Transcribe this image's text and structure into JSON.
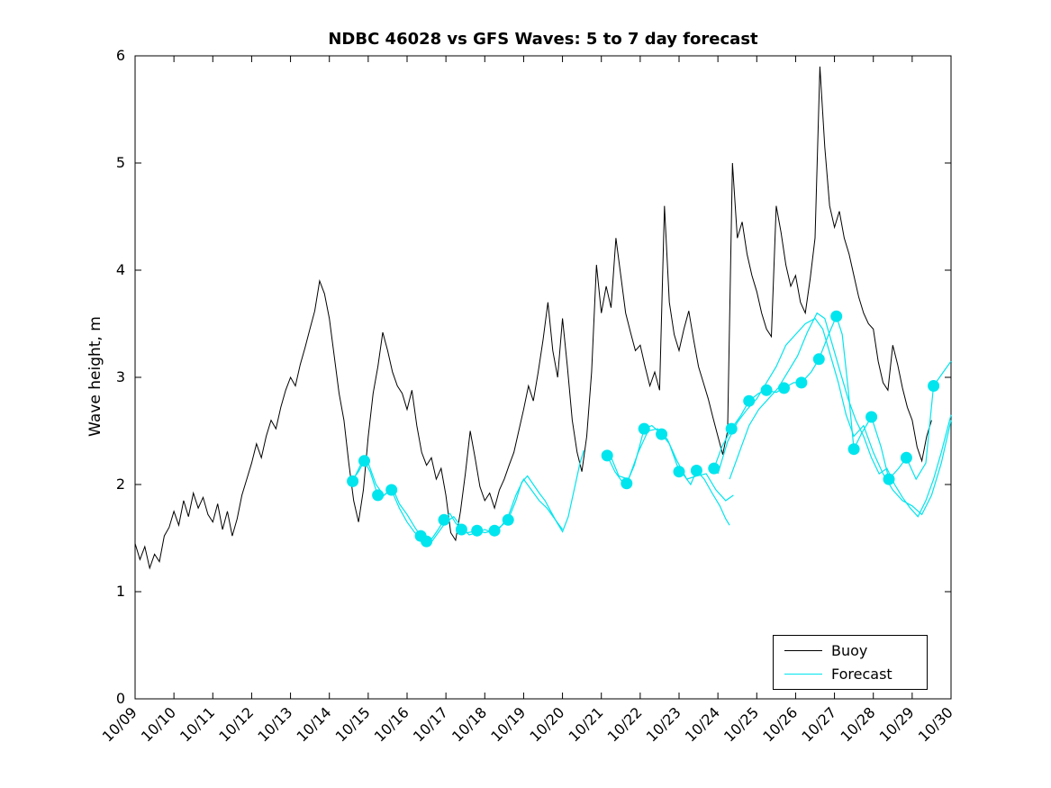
{
  "chart_data": {
    "type": "line",
    "title": "NDBC 46028 vs GFS Waves: 5 to 7 day forecast",
    "xlabel": "",
    "ylabel": "Wave height, m",
    "xlim": [
      0,
      21
    ],
    "ylim": [
      0,
      6
    ],
    "grid": false,
    "legend_position": "lower right",
    "x_unit": "days since 10/09",
    "x_tick_labels": [
      "10/09",
      "10/10",
      "10/11",
      "10/12",
      "10/13",
      "10/14",
      "10/15",
      "10/16",
      "10/17",
      "10/18",
      "10/19",
      "10/20",
      "10/21",
      "10/22",
      "10/23",
      "10/24",
      "10/25",
      "10/26",
      "10/27",
      "10/28",
      "10/29",
      "10/30"
    ],
    "y_tick_labels": [
      "0",
      "1",
      "2",
      "3",
      "4",
      "5",
      "6"
    ],
    "legend": [
      {
        "label": "Buoy",
        "color": "#000000"
      },
      {
        "label": "Forecast",
        "color": "#00e5ee"
      }
    ],
    "buoy_series": {
      "name": "Buoy",
      "color": "#000000",
      "t0": 0,
      "dt": 0.125,
      "values": [
        1.45,
        1.3,
        1.42,
        1.22,
        1.35,
        1.28,
        1.52,
        1.6,
        1.75,
        1.62,
        1.85,
        1.7,
        1.92,
        1.78,
        1.88,
        1.72,
        1.65,
        1.82,
        1.58,
        1.75,
        1.52,
        1.68,
        1.9,
        2.05,
        2.2,
        2.38,
        2.25,
        2.45,
        2.6,
        2.52,
        2.72,
        2.88,
        3.0,
        2.92,
        3.12,
        3.28,
        3.45,
        3.62,
        3.9,
        3.78,
        3.55,
        3.2,
        2.85,
        2.6,
        2.2,
        1.85,
        1.65,
        1.95,
        2.45,
        2.85,
        3.1,
        3.42,
        3.25,
        3.05,
        2.92,
        2.85,
        2.7,
        2.88,
        2.55,
        2.3,
        2.18,
        2.25,
        2.05,
        2.15,
        1.9,
        1.55,
        1.48,
        1.75,
        2.1,
        2.5,
        2.25,
        1.98,
        1.85,
        1.92,
        1.78,
        1.95,
        2.05,
        2.18,
        2.3,
        2.5,
        2.7,
        2.92,
        2.78,
        3.05,
        3.35,
        3.7,
        3.25,
        3.0,
        3.55,
        3.1,
        2.6,
        2.3,
        2.12,
        2.45,
        3.05,
        4.05,
        3.6,
        3.85,
        3.65,
        4.3,
        3.95,
        3.6,
        3.42,
        3.25,
        3.3,
        3.1,
        2.92,
        3.05,
        2.88,
        4.6,
        3.7,
        3.4,
        3.25,
        3.45,
        3.62,
        3.35,
        3.1,
        2.95,
        2.8,
        2.62,
        2.45,
        2.28,
        2.5,
        5.0,
        4.3,
        4.45,
        4.15,
        3.95,
        3.8,
        3.6,
        3.45,
        3.38,
        4.6,
        4.35,
        4.05,
        3.85,
        3.95,
        3.7,
        3.6,
        3.92,
        4.3,
        5.9,
        5.15,
        4.6,
        4.4,
        4.55,
        4.3,
        4.15,
        3.95,
        3.75,
        3.6,
        3.5,
        3.45,
        3.15,
        2.95,
        2.88,
        3.3,
        3.12,
        2.9,
        2.72,
        2.6,
        2.35,
        2.22,
        2.45,
        2.6
      ]
    },
    "forecast_series": {
      "name": "Forecast",
      "color": "#00e5ee",
      "segments": [
        [
          [
            5.55,
            2.02
          ],
          [
            5.75,
            2.12
          ],
          [
            5.9,
            2.22
          ],
          [
            6.05,
            2.12
          ],
          [
            6.2,
            1.95
          ],
          [
            6.35,
            1.88
          ],
          [
            6.5,
            1.93
          ],
          [
            6.65,
            1.95
          ],
          [
            6.8,
            1.82
          ],
          [
            7.0,
            1.72
          ],
          [
            7.2,
            1.6
          ],
          [
            7.35,
            1.52
          ],
          [
            7.5,
            1.47
          ],
          [
            7.65,
            1.5
          ],
          [
            7.8,
            1.58
          ],
          [
            7.95,
            1.67
          ],
          [
            8.1,
            1.73
          ],
          [
            8.25,
            1.64
          ],
          [
            8.4,
            1.58
          ],
          [
            8.55,
            1.55
          ],
          [
            8.7,
            1.56
          ],
          [
            8.8,
            1.57
          ],
          [
            9.0,
            1.55
          ],
          [
            9.25,
            1.57
          ],
          [
            9.45,
            1.62
          ],
          [
            9.6,
            1.67
          ],
          [
            9.8,
            1.85
          ],
          [
            9.95,
            2.02
          ],
          [
            10.1,
            2.08
          ],
          [
            10.25,
            2.0
          ],
          [
            10.4,
            1.92
          ],
          [
            10.55,
            1.85
          ],
          [
            10.7,
            1.75
          ],
          [
            10.85,
            1.65
          ],
          [
            11.0,
            1.56
          ],
          [
            11.15,
            1.7
          ],
          [
            11.3,
            1.95
          ],
          [
            11.45,
            2.2
          ],
          [
            11.55,
            2.32
          ]
        ],
        [
          [
            5.6,
            2.03
          ],
          [
            5.8,
            2.18
          ],
          [
            6.0,
            2.2
          ],
          [
            6.2,
            2.0
          ],
          [
            6.4,
            1.9
          ],
          [
            6.6,
            1.95
          ],
          [
            6.8,
            1.78
          ],
          [
            7.0,
            1.65
          ],
          [
            7.2,
            1.55
          ],
          [
            7.4,
            1.5
          ],
          [
            7.6,
            1.45
          ],
          [
            7.8,
            1.55
          ],
          [
            8.0,
            1.65
          ],
          [
            8.2,
            1.7
          ],
          [
            8.4,
            1.6
          ],
          [
            8.6,
            1.53
          ],
          [
            8.8,
            1.55
          ],
          [
            9.0,
            1.58
          ],
          [
            9.2,
            1.55
          ],
          [
            9.4,
            1.6
          ],
          [
            9.6,
            1.7
          ],
          [
            9.8,
            1.9
          ],
          [
            10.0,
            2.05
          ],
          [
            10.2,
            1.95
          ],
          [
            10.4,
            1.85
          ],
          [
            10.6,
            1.78
          ],
          [
            10.8,
            1.68
          ],
          [
            11.0,
            1.58
          ]
        ],
        [
          [
            12.15,
            2.27
          ],
          [
            12.35,
            2.12
          ],
          [
            12.55,
            2.02
          ],
          [
            12.65,
            2.01
          ],
          [
            12.85,
            2.18
          ],
          [
            13.0,
            2.38
          ],
          [
            13.1,
            2.52
          ],
          [
            13.3,
            2.55
          ],
          [
            13.55,
            2.47
          ],
          [
            13.75,
            2.38
          ],
          [
            13.95,
            2.18
          ],
          [
            14.1,
            2.1
          ],
          [
            14.3,
            2.0
          ],
          [
            14.45,
            2.13
          ],
          [
            14.65,
            2.05
          ],
          [
            14.85,
            1.92
          ],
          [
            15.05,
            1.8
          ],
          [
            15.2,
            1.68
          ],
          [
            15.3,
            1.62
          ]
        ],
        [
          [
            12.2,
            2.3
          ],
          [
            12.45,
            2.08
          ],
          [
            12.7,
            2.05
          ],
          [
            12.95,
            2.3
          ],
          [
            13.2,
            2.5
          ],
          [
            13.45,
            2.52
          ],
          [
            13.7,
            2.42
          ],
          [
            13.95,
            2.22
          ],
          [
            14.2,
            2.05
          ],
          [
            14.45,
            2.08
          ],
          [
            14.7,
            2.1
          ],
          [
            14.95,
            1.95
          ],
          [
            15.2,
            1.85
          ],
          [
            15.4,
            1.9
          ]
        ],
        [
          [
            14.9,
            2.15
          ],
          [
            15.1,
            2.35
          ],
          [
            15.35,
            2.52
          ],
          [
            15.6,
            2.65
          ],
          [
            15.8,
            2.78
          ],
          [
            16.05,
            2.85
          ],
          [
            16.25,
            2.88
          ],
          [
            16.5,
            2.86
          ],
          [
            16.7,
            2.9
          ],
          [
            16.95,
            2.95
          ],
          [
            17.15,
            2.95
          ],
          [
            17.4,
            3.05
          ],
          [
            17.6,
            3.17
          ],
          [
            17.85,
            3.4
          ],
          [
            18.05,
            3.57
          ],
          [
            18.2,
            3.4
          ],
          [
            18.35,
            2.9
          ],
          [
            18.5,
            2.33
          ],
          [
            18.7,
            2.48
          ],
          [
            18.95,
            2.63
          ],
          [
            19.2,
            2.35
          ],
          [
            19.4,
            2.05
          ],
          [
            19.65,
            2.15
          ],
          [
            19.85,
            2.25
          ],
          [
            20.1,
            2.05
          ],
          [
            20.35,
            2.2
          ],
          [
            20.55,
            2.92
          ],
          [
            20.8,
            3.05
          ],
          [
            21.0,
            3.15
          ]
        ],
        [
          [
            15.0,
            2.1
          ],
          [
            15.25,
            2.4
          ],
          [
            15.5,
            2.58
          ],
          [
            15.75,
            2.7
          ],
          [
            16.0,
            2.8
          ],
          [
            16.25,
            2.95
          ],
          [
            16.5,
            3.1
          ],
          [
            16.75,
            3.3
          ],
          [
            17.0,
            3.4
          ],
          [
            17.25,
            3.5
          ],
          [
            17.5,
            3.55
          ],
          [
            17.7,
            3.45
          ],
          [
            17.9,
            3.2
          ],
          [
            18.1,
            2.95
          ],
          [
            18.3,
            2.65
          ],
          [
            18.5,
            2.45
          ],
          [
            18.75,
            2.55
          ],
          [
            19.0,
            2.3
          ],
          [
            19.25,
            2.1
          ],
          [
            19.5,
            1.95
          ],
          [
            19.75,
            1.85
          ],
          [
            20.0,
            1.8
          ],
          [
            20.25,
            1.72
          ],
          [
            20.5,
            1.9
          ],
          [
            20.75,
            2.2
          ],
          [
            21.0,
            2.6
          ]
        ],
        [
          [
            15.3,
            2.05
          ],
          [
            15.55,
            2.3
          ],
          [
            15.8,
            2.55
          ],
          [
            16.05,
            2.7
          ],
          [
            16.3,
            2.8
          ],
          [
            16.55,
            2.9
          ],
          [
            16.8,
            3.05
          ],
          [
            17.05,
            3.2
          ],
          [
            17.3,
            3.42
          ],
          [
            17.55,
            3.6
          ],
          [
            17.75,
            3.55
          ],
          [
            17.95,
            3.3
          ],
          [
            18.15,
            3.05
          ],
          [
            18.35,
            2.8
          ],
          [
            18.55,
            2.6
          ],
          [
            18.75,
            2.45
          ],
          [
            18.95,
            2.25
          ],
          [
            19.15,
            2.1
          ],
          [
            19.35,
            2.15
          ],
          [
            19.55,
            2.0
          ],
          [
            19.75,
            1.88
          ],
          [
            19.95,
            1.78
          ],
          [
            20.15,
            1.7
          ],
          [
            20.35,
            1.85
          ],
          [
            20.55,
            2.05
          ],
          [
            20.75,
            2.3
          ],
          [
            21.0,
            2.65
          ]
        ]
      ]
    },
    "forecast_markers": {
      "color": "#00e5ee",
      "points": [
        [
          5.6,
          2.03
        ],
        [
          5.9,
          2.22
        ],
        [
          6.25,
          1.9
        ],
        [
          6.6,
          1.95
        ],
        [
          7.35,
          1.52
        ],
        [
          7.5,
          1.47
        ],
        [
          7.95,
          1.67
        ],
        [
          8.4,
          1.58
        ],
        [
          8.8,
          1.57
        ],
        [
          9.25,
          1.57
        ],
        [
          9.6,
          1.67
        ],
        [
          12.15,
          2.27
        ],
        [
          12.65,
          2.01
        ],
        [
          13.1,
          2.52
        ],
        [
          13.55,
          2.47
        ],
        [
          14.0,
          2.12
        ],
        [
          14.45,
          2.13
        ],
        [
          14.9,
          2.15
        ],
        [
          15.35,
          2.52
        ],
        [
          15.8,
          2.78
        ],
        [
          16.25,
          2.88
        ],
        [
          16.7,
          2.9
        ],
        [
          17.15,
          2.95
        ],
        [
          17.6,
          3.17
        ],
        [
          18.05,
          3.57
        ],
        [
          18.5,
          2.33
        ],
        [
          18.95,
          2.63
        ],
        [
          19.4,
          2.05
        ],
        [
          19.85,
          2.25
        ],
        [
          20.55,
          2.92
        ]
      ]
    }
  }
}
